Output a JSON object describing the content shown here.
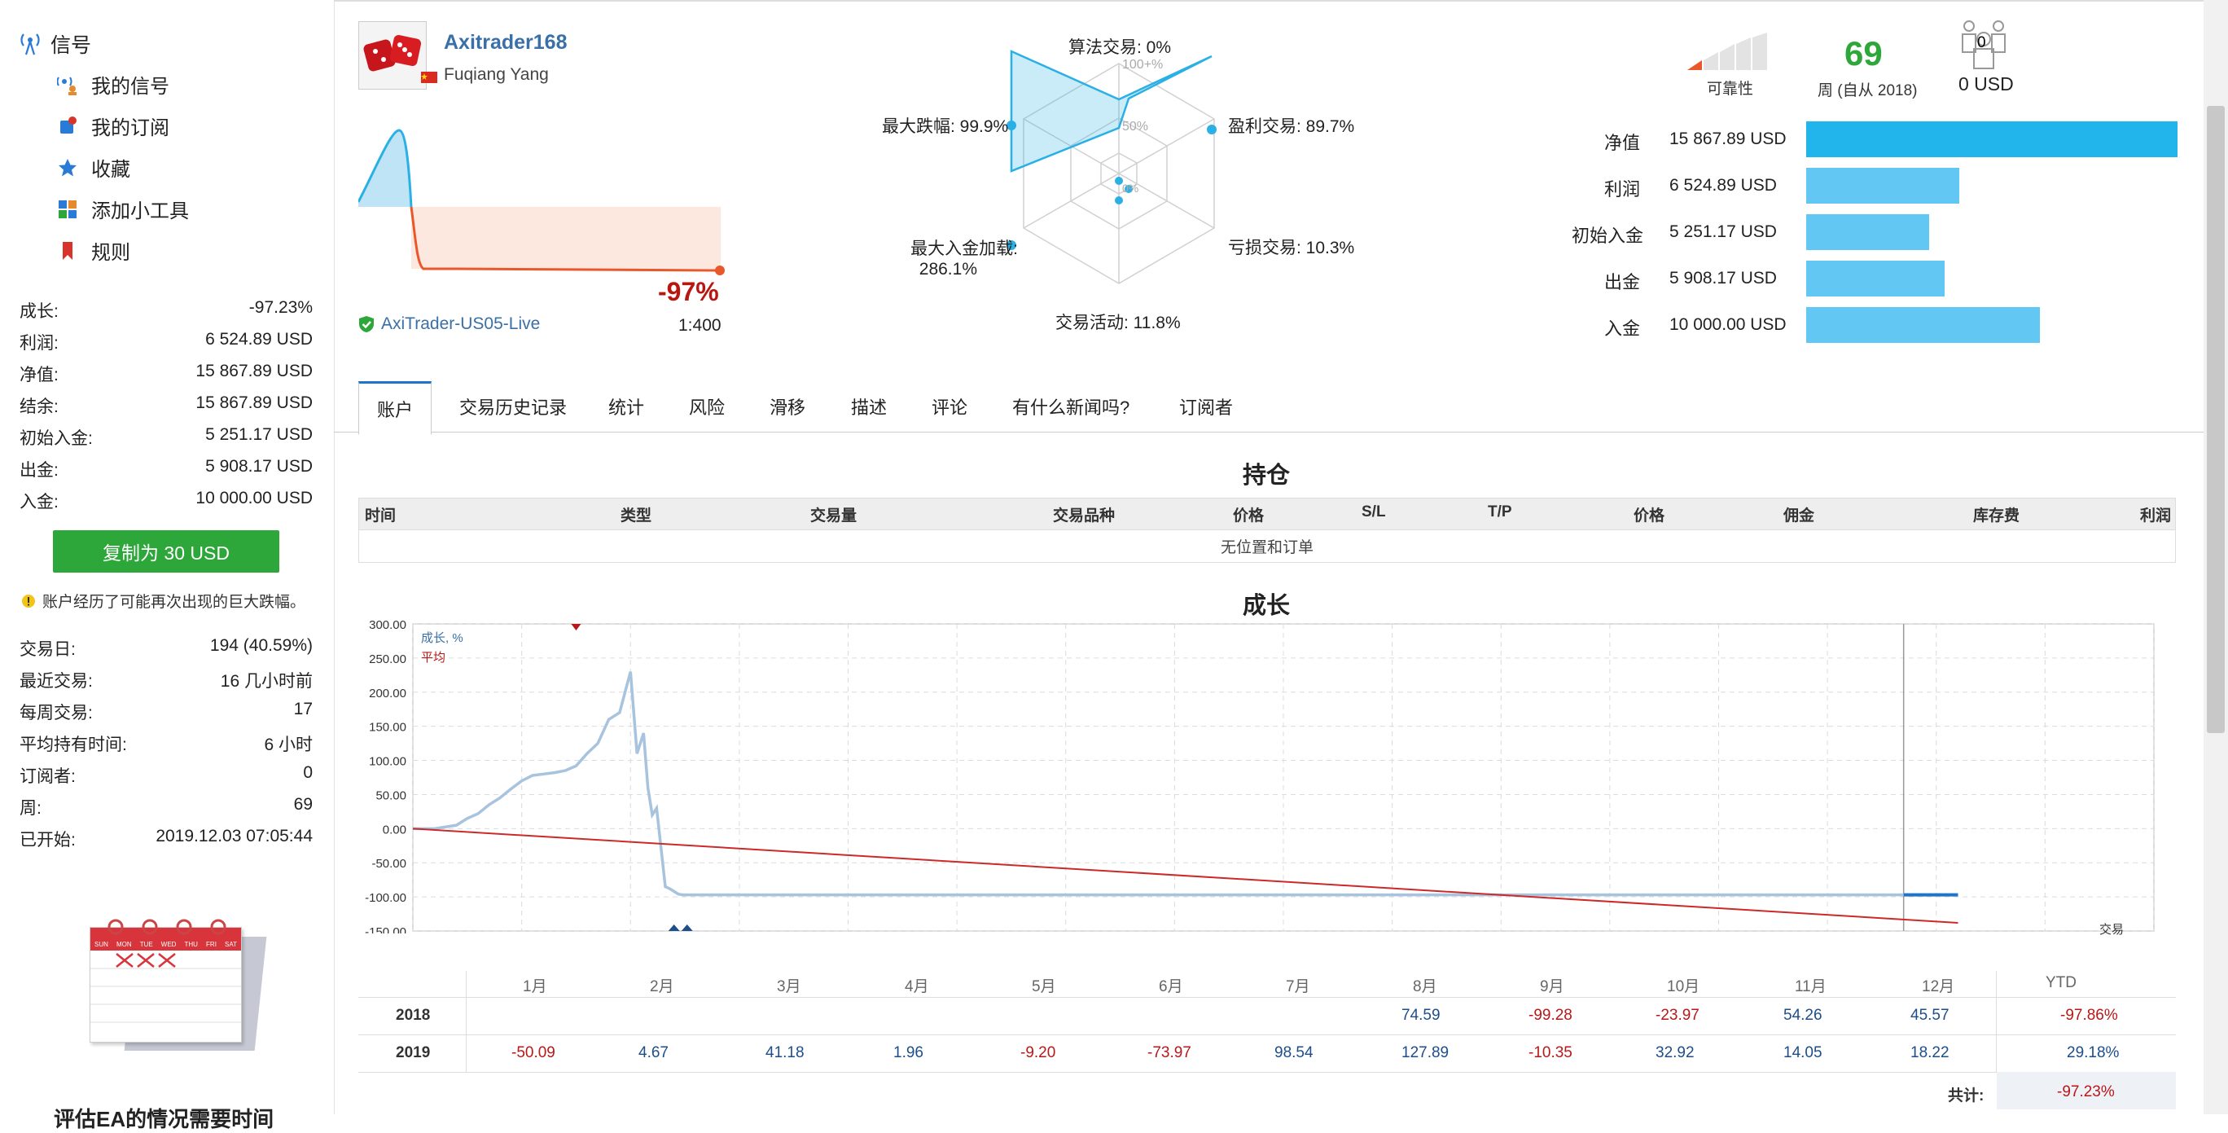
{
  "sidebar": {
    "section_title": "信号",
    "items": [
      {
        "label": "我的信号",
        "icon": "my-signals-icon"
      },
      {
        "label": "我的订阅",
        "icon": "my-subscriptions-icon"
      },
      {
        "label": "收藏",
        "icon": "star-icon"
      },
      {
        "label": "添加小工具",
        "icon": "widget-icon"
      },
      {
        "label": "规则",
        "icon": "bookmark-icon"
      }
    ],
    "stats": [
      {
        "label": "成长:",
        "value": "-97.23%"
      },
      {
        "label": "利润:",
        "value": "6 524.89 USD"
      },
      {
        "label": "净值:",
        "value": "15 867.89 USD"
      },
      {
        "label": "结余:",
        "value": "15 867.89 USD"
      },
      {
        "label": "初始入金:",
        "value": "5 251.17 USD"
      },
      {
        "label": "出金:",
        "value": "5 908.17 USD"
      },
      {
        "label": "入金:",
        "value": "10 000.00 USD"
      }
    ],
    "copy_button": "复制为 30 USD",
    "warning": "账户经历了可能再次出现的巨大跌幅。",
    "stats2": [
      {
        "label": "交易日:",
        "value": "194 (40.59%)"
      },
      {
        "label": "最近交易:",
        "value": "16 几小时前"
      },
      {
        "label": "每周交易:",
        "value": "17"
      },
      {
        "label": "平均持有时间:",
        "value": "6 小时"
      },
      {
        "label": "订阅者:",
        "value": "0"
      },
      {
        "label": "周:",
        "value": "69"
      },
      {
        "label": "已开始:",
        "value": "2019.12.03 07:05:44"
      }
    ],
    "calendar_days": [
      "SUN",
      "MON",
      "TUE",
      "WED",
      "THU",
      "FRI",
      "SAT"
    ],
    "bottom_text": "评估EA的情况需要时间"
  },
  "header": {
    "name": "Axitrader168",
    "owner": "Fuqiang Yang",
    "growth": "-97%",
    "server": "AxiTrader-US05-Live",
    "leverage": "1:400",
    "reliability_label": "可靠性",
    "weeks_value": "69",
    "weeks_label": "周 (自从 2018)",
    "subscribers_count": "0",
    "subscribers_usd": "0 USD"
  },
  "radar": {
    "labels": {
      "algo": "算法交易: 0%",
      "profit_trades": "盈利交易: 89.7%",
      "loss_trades": "亏损交易: 10.3%",
      "activity": "交易活动: 11.8%",
      "max_deposit_load_1": "最大入金加载:",
      "max_deposit_load_2": "286.1%",
      "max_drawdown": "最大跌幅: 99.9%"
    },
    "ring_labels": [
      "100+%",
      "50%",
      "0%"
    ],
    "values": {
      "algo": 0,
      "profit_trades": 89.7,
      "loss_trades": 10.3,
      "activity": 11.8,
      "max_deposit_load": 100,
      "max_drawdown": 99.9
    }
  },
  "balance_bars": [
    {
      "label": "净值",
      "value": "15 867.89 USD",
      "amount": 15867.89,
      "color": "#22b5ec"
    },
    {
      "label": "利润",
      "value": "6 524.89 USD",
      "amount": 6524.89,
      "color": "#63c7f3"
    },
    {
      "label": "初始入金",
      "value": "5 251.17 USD",
      "amount": 5251.17,
      "color": "#63c7f3"
    },
    {
      "label": "出金",
      "value": "5 908.17 USD",
      "amount": 5908.17,
      "color": "#63c7f3"
    },
    {
      "label": "入金",
      "value": "10 000.00 USD",
      "amount": 10000.0,
      "color": "#63c7f3"
    }
  ],
  "tabs": [
    "账户",
    "交易历史记录",
    "统计",
    "风险",
    "滑移",
    "描述",
    "评论",
    "有什么新闻吗?",
    "订阅者"
  ],
  "positions": {
    "title": "持仓",
    "columns": [
      "时间",
      "类型",
      "交易量",
      "交易品种",
      "价格",
      "S/L",
      "T/P",
      "价格",
      "佣金",
      "库存费",
      "利润"
    ],
    "empty": "无位置和订单"
  },
  "growth": {
    "title": "成长",
    "legend_growth": "成长, %",
    "legend_avg": "平均",
    "x_unit": "交易"
  },
  "chart_data": {
    "type": "line",
    "xlim": [
      0,
      800
    ],
    "ylim": [
      -150,
      300
    ],
    "x_ticks": [
      0,
      50,
      100,
      150,
      200,
      250,
      300,
      350,
      400,
      450,
      500,
      550,
      600,
      650,
      700,
      750,
      800
    ],
    "y_ticks": [
      "300.00",
      "250.00",
      "200.00",
      "150.00",
      "100.00",
      "50.00",
      "0.00",
      "-50.00",
      "-100.00",
      "-150.00"
    ],
    "series": [
      {
        "name": "成长, %",
        "color": "#a7c3dd",
        "x": [
          0,
          10,
          20,
          25,
          30,
          35,
          40,
          45,
          50,
          55,
          60,
          65,
          70,
          75,
          80,
          85,
          90,
          95,
          100,
          103,
          106,
          108,
          110,
          112,
          116,
          118,
          120,
          122,
          124,
          126,
          130,
          150,
          200,
          300,
          400,
          500,
          600,
          690,
          710
        ],
        "y": [
          0,
          0,
          5,
          15,
          22,
          35,
          45,
          58,
          70,
          78,
          80,
          82,
          85,
          92,
          110,
          125,
          160,
          170,
          230,
          110,
          140,
          60,
          20,
          30,
          -85,
          -88,
          -92,
          -96,
          -97,
          -97,
          -97,
          -97,
          -97,
          -97,
          -97,
          -97,
          -97,
          -97,
          -97
        ]
      },
      {
        "name": "平均",
        "color": "#cc2a2a",
        "x": [
          0,
          710
        ],
        "y": [
          0,
          -138
        ]
      }
    ]
  },
  "monthly": {
    "months": [
      "1月",
      "2月",
      "3月",
      "4月",
      "5月",
      "6月",
      "7月",
      "8月",
      "9月",
      "10月",
      "11月",
      "12月"
    ],
    "ytd_label": "YTD",
    "rows": [
      {
        "year": "2018",
        "values": [
          "",
          "",
          "",
          "",
          "",
          "",
          "",
          "74.59",
          "-99.28",
          "-23.97",
          "54.26",
          "45.57"
        ],
        "ytd": "-97.86%"
      },
      {
        "year": "2019",
        "values": [
          "-50.09",
          "4.67",
          "41.18",
          "1.96",
          "-9.20",
          "-73.97",
          "98.54",
          "127.89",
          "-10.35",
          "32.92",
          "14.05",
          "18.22"
        ],
        "ytd": "29.18%"
      }
    ],
    "total_label": "共计:",
    "total_value": "-97.23%"
  }
}
